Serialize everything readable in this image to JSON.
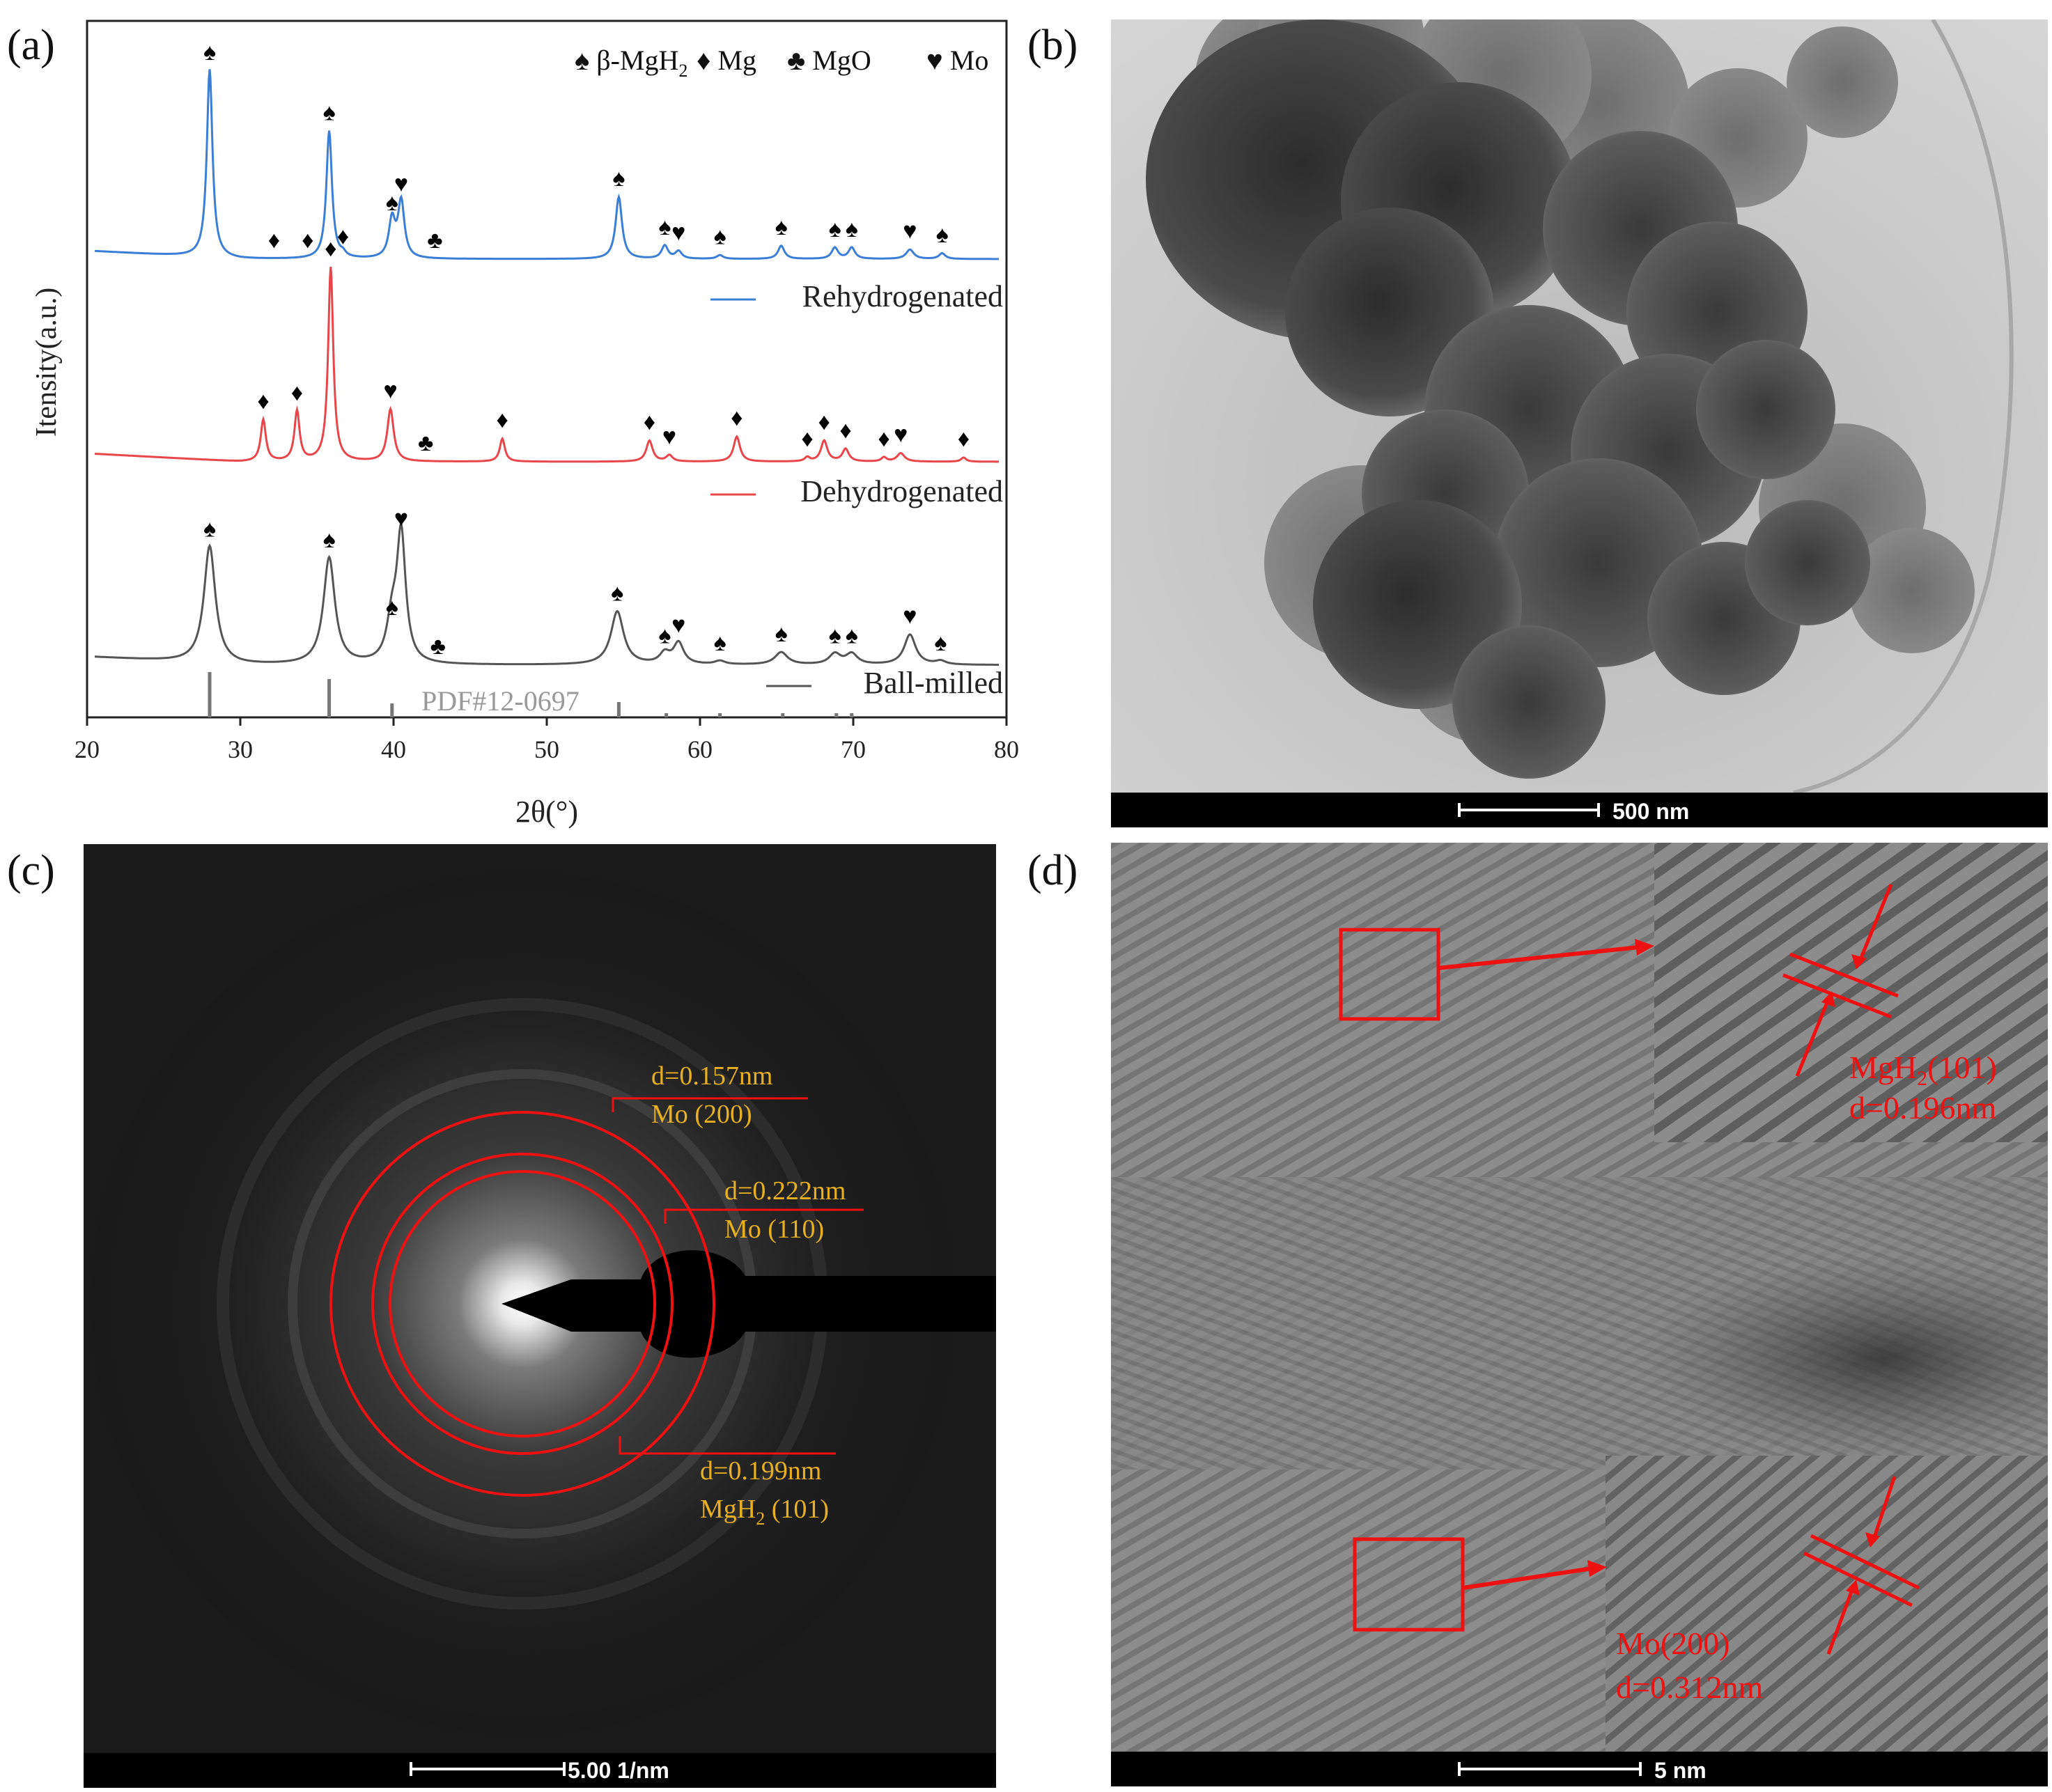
{
  "panels": {
    "a": {
      "letter": "(a)"
    },
    "b": {
      "letter": "(b)",
      "scale_bar": "500 nm"
    },
    "c": {
      "letter": "(c)",
      "scale_bar": "5.00 1/nm",
      "rings": [
        {
          "d": "d=0.157nm",
          "label": "Mo (200)"
        },
        {
          "d": "d=0.222nm",
          "label": "Mo (110)"
        },
        {
          "d": "d=0.199nm",
          "label_pre": "MgH",
          "sub": "2",
          "label_post": " (101)"
        }
      ]
    },
    "d": {
      "letter": "(d)",
      "scale_bar": "5 nm",
      "inset1": {
        "label_pre": "MgH",
        "sub": "2",
        "label_post": "(101)",
        "d": "d=0.196nm"
      },
      "inset2": {
        "label": "Mo(200)",
        "d": "d=0.312nm"
      }
    }
  },
  "chart_data": {
    "type": "line",
    "xlabel": "2θ(°)",
    "ylabel": "Itensity(a.u.)",
    "xlim": [
      20,
      80
    ],
    "xticks": [
      "20",
      "30",
      "40",
      "50",
      "60",
      "70",
      "80"
    ],
    "legend": [
      {
        "symbol": "♠",
        "pre": "β-MgH",
        "sub": "2"
      },
      {
        "symbol": "♦",
        "pre": "Mg",
        "sub": ""
      },
      {
        "symbol": "♣",
        "pre": "MgO",
        "sub": ""
      },
      {
        "symbol": "♥",
        "pre": "Mo",
        "sub": ""
      }
    ],
    "reference": {
      "label": "PDF#12-0697",
      "peaks": [
        28.0,
        35.8,
        39.9,
        54.7,
        57.8,
        61.3,
        65.4,
        68.9,
        69.9
      ]
    },
    "series": [
      {
        "name": "Rehydrogenated",
        "color": "#3a7fd5",
        "peaks": [
          {
            "x": 28.0,
            "h": 1.0,
            "w": 0.22,
            "m": "♠"
          },
          {
            "x": 32.2,
            "h": 0.0,
            "w": 0.2,
            "m": "♦"
          },
          {
            "x": 34.4,
            "h": 0.0,
            "w": 0.2,
            "m": "♦"
          },
          {
            "x": 35.8,
            "h": 0.68,
            "w": 0.22,
            "m": "♠"
          },
          {
            "x": 36.7,
            "h": 0.02,
            "w": 0.2,
            "m": "♦"
          },
          {
            "x": 39.9,
            "h": 0.2,
            "w": 0.25,
            "m": "♠"
          },
          {
            "x": 40.5,
            "h": 0.3,
            "w": 0.25,
            "m": "♥"
          },
          {
            "x": 42.7,
            "h": 0.0,
            "w": 0.2,
            "m": "♣"
          },
          {
            "x": 54.7,
            "h": 0.33,
            "w": 0.25,
            "m": "♠"
          },
          {
            "x": 57.7,
            "h": 0.07,
            "w": 0.25,
            "m": "♠"
          },
          {
            "x": 58.6,
            "h": 0.04,
            "w": 0.25,
            "m": "♥"
          },
          {
            "x": 61.3,
            "h": 0.02,
            "w": 0.25,
            "m": "♠"
          },
          {
            "x": 65.3,
            "h": 0.07,
            "w": 0.25,
            "m": "♠"
          },
          {
            "x": 68.8,
            "h": 0.06,
            "w": 0.25,
            "m": "♠"
          },
          {
            "x": 69.9,
            "h": 0.06,
            "w": 0.25,
            "m": "♠"
          },
          {
            "x": 73.7,
            "h": 0.05,
            "w": 0.3,
            "m": "♥"
          },
          {
            "x": 75.8,
            "h": 0.03,
            "w": 0.25,
            "m": "♠"
          }
        ]
      },
      {
        "name": "Dehydrogenated",
        "color": "#e8464a",
        "peaks": [
          {
            "x": 31.5,
            "h": 0.2,
            "w": 0.2,
            "m": "♦"
          },
          {
            "x": 33.7,
            "h": 0.24,
            "w": 0.2,
            "m": "♦"
          },
          {
            "x": 35.9,
            "h": 0.93,
            "w": 0.2,
            "m": "♦"
          },
          {
            "x": 39.8,
            "h": 0.25,
            "w": 0.25,
            "m": "♥"
          },
          {
            "x": 42.1,
            "h": 0.0,
            "w": 0.2,
            "m": "♣"
          },
          {
            "x": 47.1,
            "h": 0.11,
            "w": 0.2,
            "m": "♦"
          },
          {
            "x": 56.7,
            "h": 0.1,
            "w": 0.25,
            "m": "♦"
          },
          {
            "x": 58.0,
            "h": 0.03,
            "w": 0.25,
            "m": "♥"
          },
          {
            "x": 62.4,
            "h": 0.12,
            "w": 0.25,
            "m": "♦"
          },
          {
            "x": 67.0,
            "h": 0.02,
            "w": 0.2,
            "m": "♦"
          },
          {
            "x": 68.1,
            "h": 0.1,
            "w": 0.25,
            "m": "♦"
          },
          {
            "x": 69.5,
            "h": 0.06,
            "w": 0.25,
            "m": "♦"
          },
          {
            "x": 72.0,
            "h": 0.02,
            "w": 0.2,
            "m": "♦"
          },
          {
            "x": 73.1,
            "h": 0.04,
            "w": 0.3,
            "m": "♥"
          },
          {
            "x": 77.2,
            "h": 0.02,
            "w": 0.2,
            "m": "♦"
          }
        ]
      },
      {
        "name": "Ball-milled",
        "color": "#555555",
        "peaks": [
          {
            "x": 28.0,
            "h": 0.66,
            "w": 0.45,
            "m": "♠"
          },
          {
            "x": 35.8,
            "h": 0.6,
            "w": 0.45,
            "m": "♠"
          },
          {
            "x": 39.9,
            "h": 0.22,
            "w": 0.4,
            "m": "♠"
          },
          {
            "x": 40.5,
            "h": 0.72,
            "w": 0.35,
            "m": "♥"
          },
          {
            "x": 42.9,
            "h": 0.0,
            "w": 0.3,
            "m": "♣"
          },
          {
            "x": 54.6,
            "h": 0.3,
            "w": 0.5,
            "m": "♠"
          },
          {
            "x": 57.7,
            "h": 0.06,
            "w": 0.4,
            "m": "♠"
          },
          {
            "x": 58.6,
            "h": 0.12,
            "w": 0.4,
            "m": "♥"
          },
          {
            "x": 61.3,
            "h": 0.02,
            "w": 0.4,
            "m": "♠"
          },
          {
            "x": 65.3,
            "h": 0.07,
            "w": 0.5,
            "m": "♠"
          },
          {
            "x": 68.8,
            "h": 0.06,
            "w": 0.45,
            "m": "♠"
          },
          {
            "x": 69.9,
            "h": 0.06,
            "w": 0.45,
            "m": "♠"
          },
          {
            "x": 73.7,
            "h": 0.17,
            "w": 0.45,
            "m": "♥"
          },
          {
            "x": 75.7,
            "h": 0.02,
            "w": 0.4,
            "m": "♠"
          }
        ]
      }
    ]
  }
}
